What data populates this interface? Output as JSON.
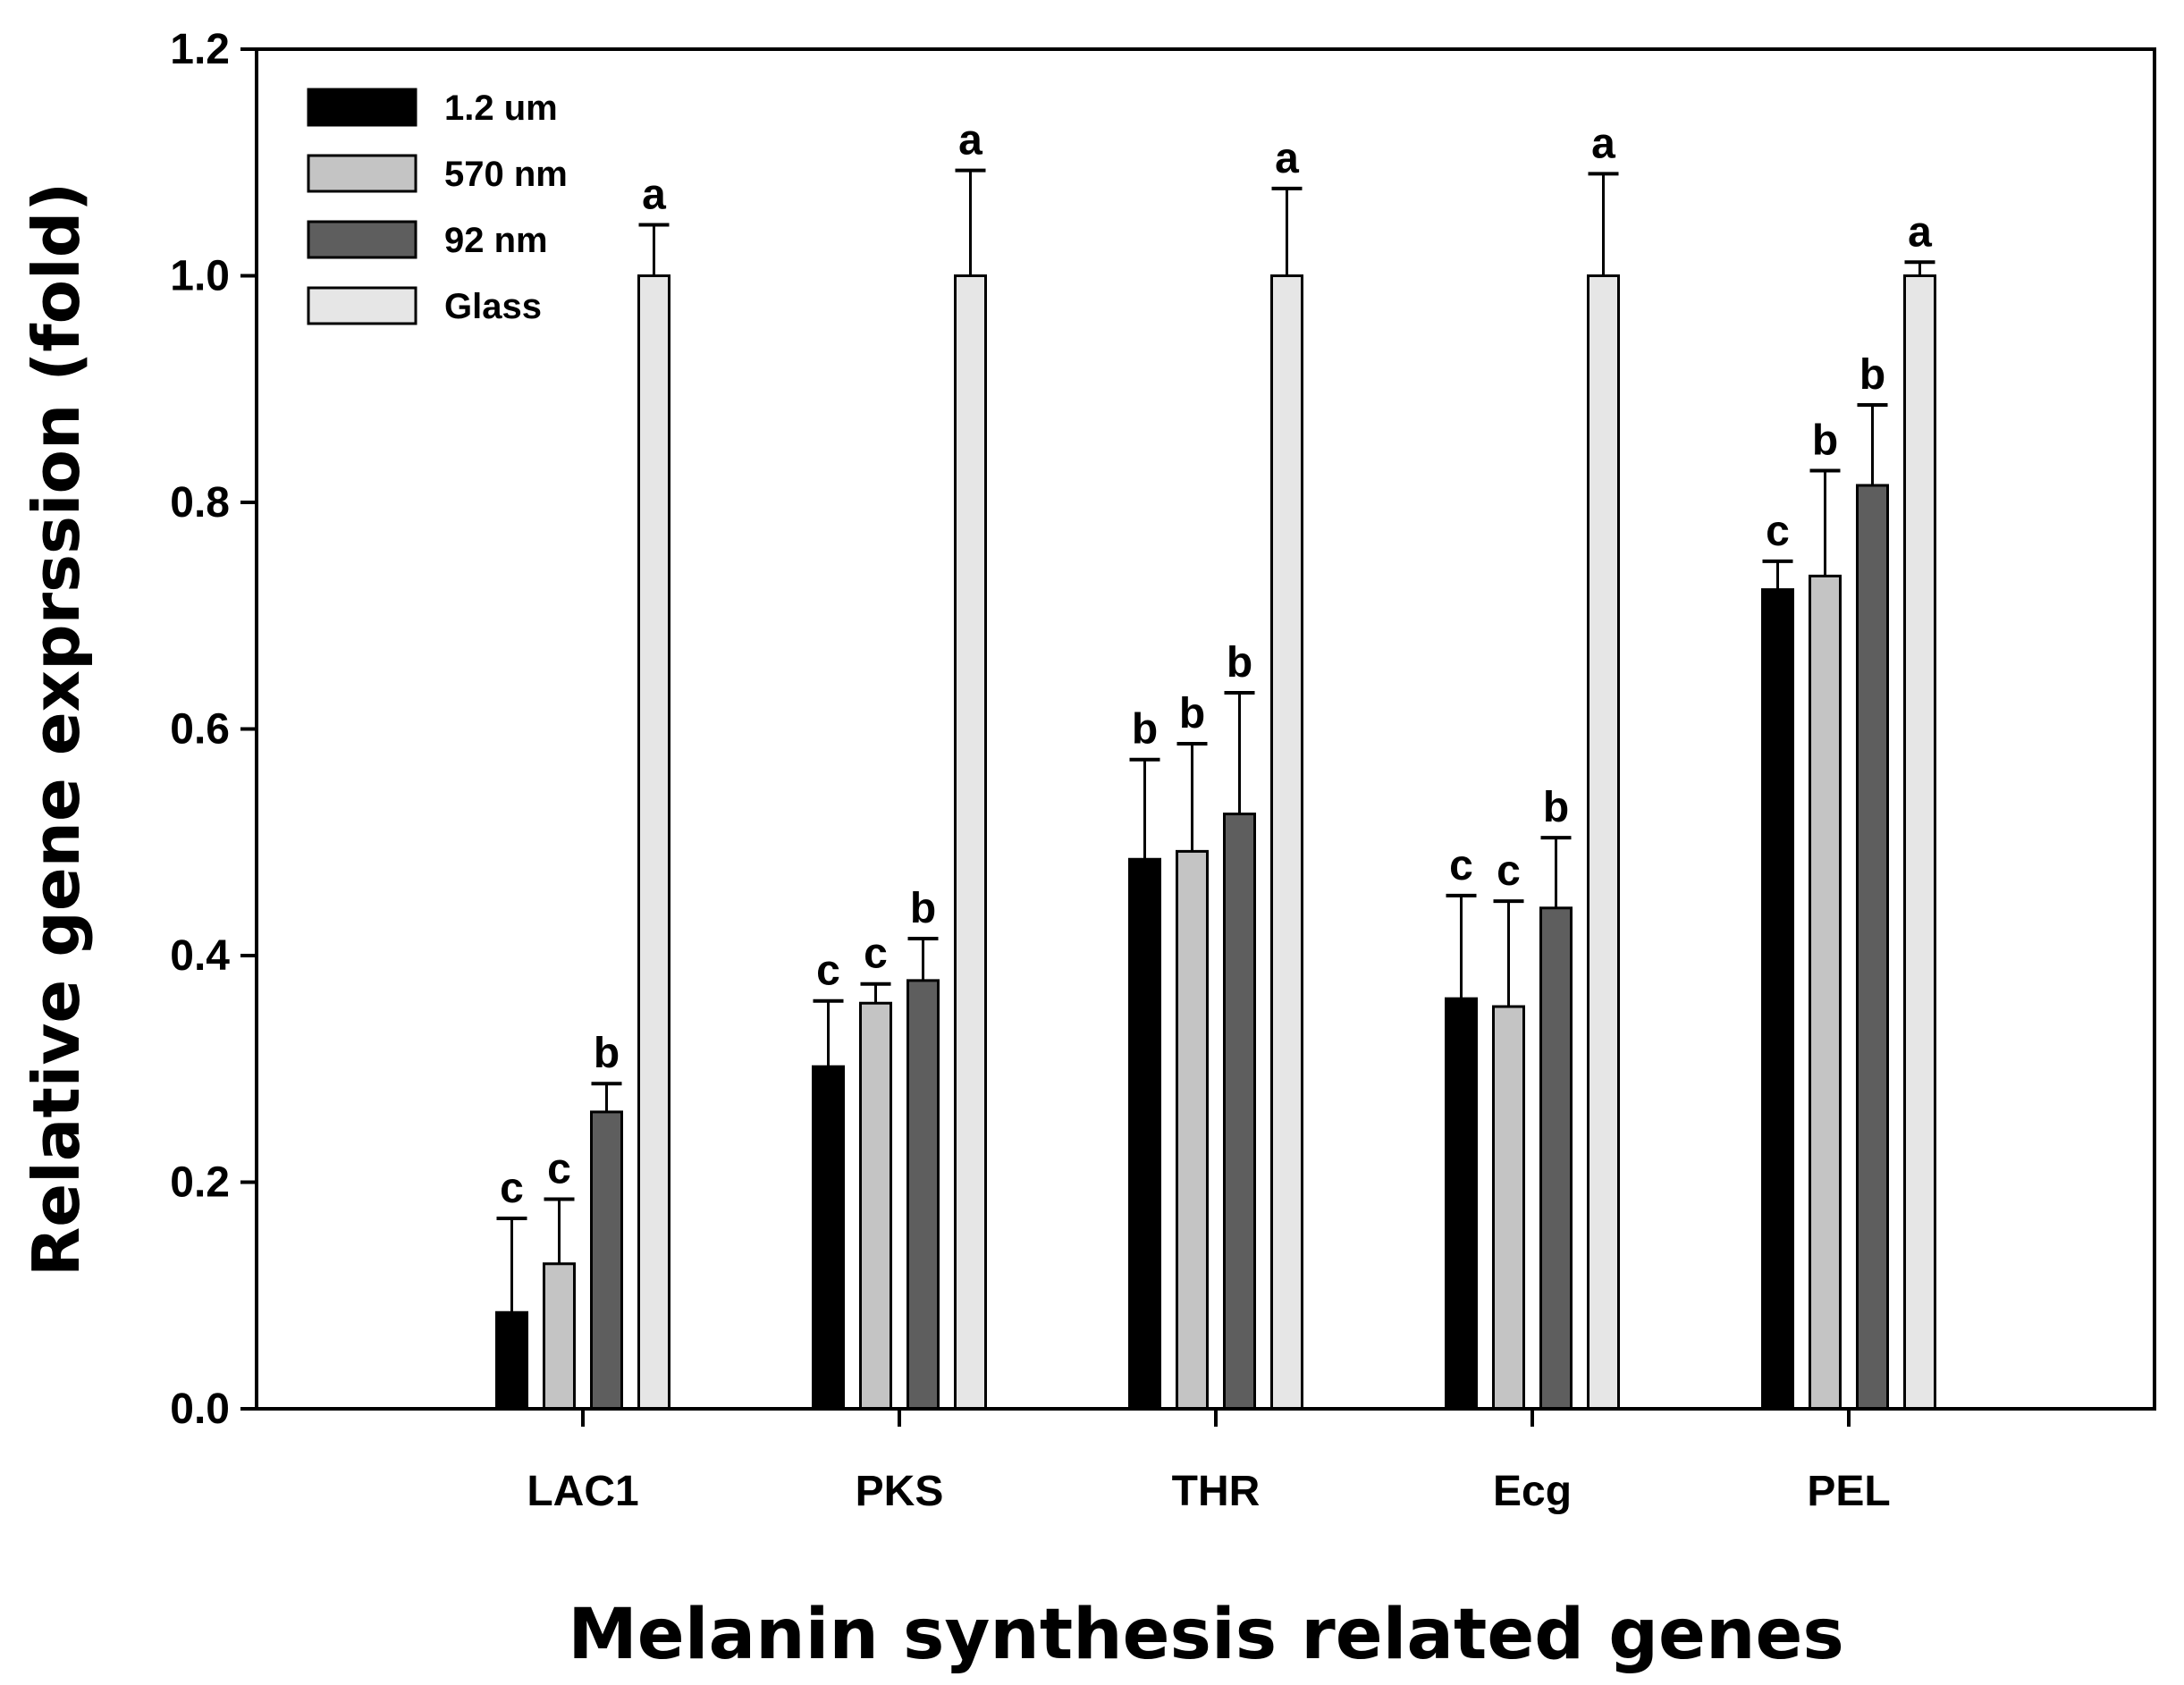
{
  "chart_data": {
    "type": "bar",
    "title": "",
    "xlabel": "Melanin synthesis related genes",
    "ylabel": "Relative gene exprssion (fold)",
    "ylim": [
      0,
      1.2
    ],
    "yticks": [
      "0.0",
      "0.2",
      "0.4",
      "0.6",
      "0.8",
      "1.0",
      "1.2"
    ],
    "categories": [
      "LAC1",
      "PKS",
      "THR",
      "Ecg",
      "PEL"
    ],
    "legend_position": "top-left",
    "series": [
      {
        "name": "1.2 um",
        "color": "#000000",
        "values": [
          0.085,
          0.302,
          0.485,
          0.362,
          0.723
        ],
        "errors": [
          0.083,
          0.058,
          0.088,
          0.091,
          0.025
        ],
        "letters": [
          "c",
          "c",
          "b",
          "c",
          "c"
        ]
      },
      {
        "name": "570 nm",
        "color": "#c4c4c4",
        "values": [
          0.128,
          0.358,
          0.492,
          0.355,
          0.735
        ],
        "errors": [
          0.057,
          0.017,
          0.095,
          0.093,
          0.093
        ],
        "letters": [
          "c",
          "c",
          "b",
          "c",
          "b"
        ]
      },
      {
        "name": "92 nm",
        "color": "#5e5e5e",
        "values": [
          0.262,
          0.378,
          0.525,
          0.442,
          0.815
        ],
        "errors": [
          0.025,
          0.037,
          0.107,
          0.062,
          0.071
        ],
        "letters": [
          "b",
          "b",
          "b",
          "b",
          "b"
        ]
      },
      {
        "name": "Glass",
        "color": "#e6e6e6",
        "values": [
          1.0,
          1.0,
          1.0,
          1.0,
          1.0
        ],
        "errors": [
          0.045,
          0.093,
          0.077,
          0.09,
          0.012
        ],
        "letters": [
          "a",
          "a",
          "a",
          "a",
          "a"
        ]
      }
    ]
  }
}
